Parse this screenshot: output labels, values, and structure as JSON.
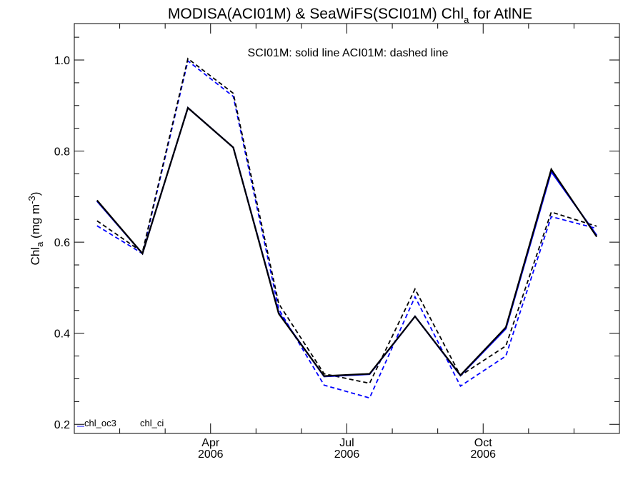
{
  "chart_data": {
    "type": "line",
    "title": "MODISA(ACI01M) & SeaWiFS(SCI01M)  Chl",
    "title_sub": "a",
    "title_suffix": " for AtlNE",
    "ylabel": "Chl",
    "ylabel_sub": "a",
    "ylabel_unit": " (mg m",
    "ylabel_sup": "-3",
    "ylabel_close": ")",
    "annotation": "SCI01M: solid line   ACI01M: dashed line",
    "x": [
      1,
      2,
      3,
      4,
      5,
      6,
      7,
      8,
      9,
      10,
      11,
      12
    ],
    "xlim": [
      0.5,
      12.5
    ],
    "ylim": [
      0.18,
      1.08
    ],
    "yticks": [
      0.2,
      0.4,
      0.6,
      0.8,
      1.0
    ],
    "ytick_labels": [
      "0.2",
      "0.4",
      "0.6",
      "0.8",
      "1.0"
    ],
    "xticks_major": [
      {
        "pos": 3.5,
        "month": "Apr",
        "year": "2006"
      },
      {
        "pos": 6.5,
        "month": "Jul",
        "year": "2006"
      },
      {
        "pos": 9.5,
        "month": "Oct",
        "year": "2006"
      }
    ],
    "xticks_minor": [
      1.5,
      2.5,
      4.5,
      5.5,
      7.5,
      8.5,
      10.5,
      11.5
    ],
    "legend": [
      {
        "label": "chl_oc3",
        "color": "#0000ff"
      },
      {
        "label": "chl_ci",
        "color": "#000000"
      }
    ],
    "legend_position": "bottom-left",
    "series": [
      {
        "style": "solid",
        "color": "#0000ff",
        "values": [
          0.69,
          0.575,
          0.895,
          0.808,
          0.445,
          0.305,
          0.31,
          0.437,
          0.307,
          0.41,
          0.755,
          0.615
        ]
      },
      {
        "style": "solid",
        "color": "#000000",
        "values": [
          0.692,
          0.575,
          0.895,
          0.808,
          0.443,
          0.306,
          0.311,
          0.437,
          0.308,
          0.413,
          0.76,
          0.612
        ]
      },
      {
        "style": "dashed",
        "color": "#0000ff",
        "values": [
          0.636,
          0.575,
          0.998,
          0.92,
          0.453,
          0.286,
          0.258,
          0.48,
          0.284,
          0.35,
          0.656,
          0.63
        ]
      },
      {
        "style": "dashed",
        "color": "#000000",
        "values": [
          0.647,
          0.578,
          1.003,
          0.927,
          0.465,
          0.311,
          0.29,
          0.497,
          0.307,
          0.372,
          0.666,
          0.635
        ]
      }
    ]
  }
}
